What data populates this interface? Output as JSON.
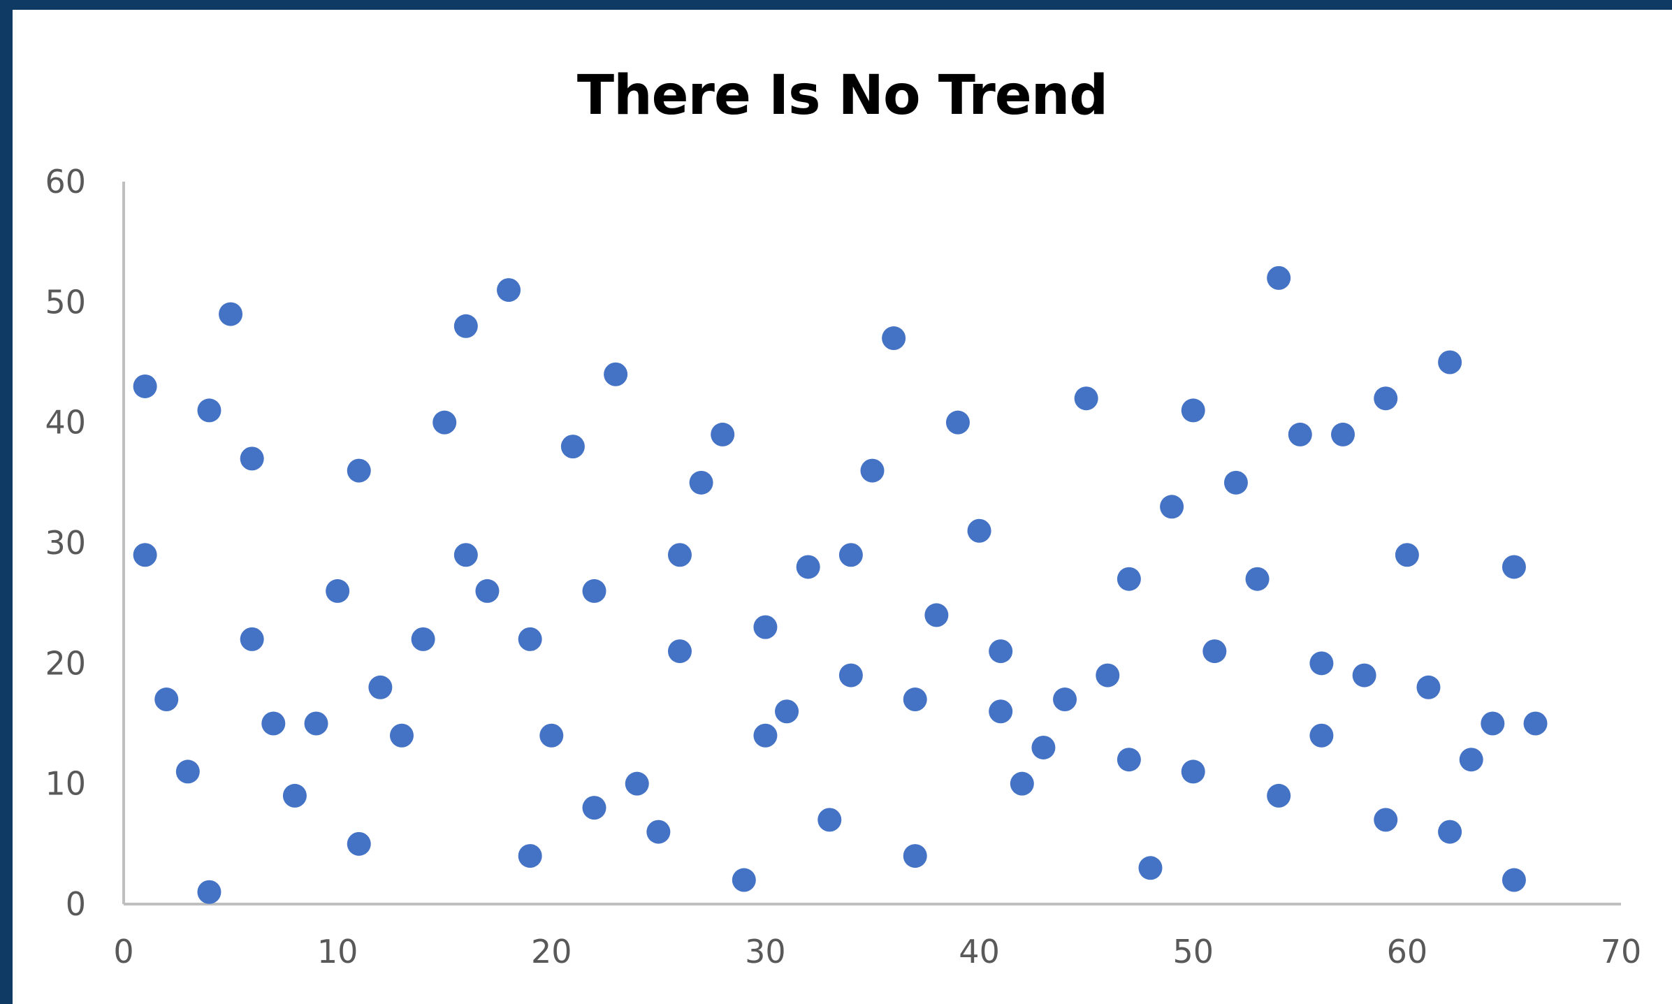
{
  "chart_data": {
    "type": "scatter",
    "title": "There Is No Trend",
    "xlabel": "",
    "ylabel": "",
    "xlim": [
      0,
      70
    ],
    "ylim": [
      0,
      60
    ],
    "x_ticks": [
      0,
      10,
      20,
      30,
      40,
      50,
      60,
      70
    ],
    "y_ticks": [
      0,
      10,
      20,
      30,
      40,
      50,
      60
    ],
    "grid": false,
    "legend": "none",
    "marker_color": "#4472c4",
    "points": [
      [
        1,
        43
      ],
      [
        1,
        29
      ],
      [
        2,
        17
      ],
      [
        3,
        11
      ],
      [
        4,
        41
      ],
      [
        4,
        1
      ],
      [
        5,
        49
      ],
      [
        6,
        37
      ],
      [
        6,
        22
      ],
      [
        7,
        15
      ],
      [
        8,
        9
      ],
      [
        9,
        15
      ],
      [
        10,
        26
      ],
      [
        11,
        36
      ],
      [
        11,
        5
      ],
      [
        12,
        18
      ],
      [
        13,
        14
      ],
      [
        14,
        22
      ],
      [
        15,
        40
      ],
      [
        16,
        48
      ],
      [
        16,
        29
      ],
      [
        17,
        26
      ],
      [
        18,
        51
      ],
      [
        19,
        22
      ],
      [
        19,
        4
      ],
      [
        20,
        14
      ],
      [
        21,
        38
      ],
      [
        22,
        26
      ],
      [
        22,
        8
      ],
      [
        23,
        44
      ],
      [
        24,
        10
      ],
      [
        25,
        6
      ],
      [
        26,
        29
      ],
      [
        26,
        21
      ],
      [
        27,
        35
      ],
      [
        28,
        39
      ],
      [
        29,
        2
      ],
      [
        30,
        23
      ],
      [
        30,
        14
      ],
      [
        31,
        16
      ],
      [
        32,
        28
      ],
      [
        33,
        7
      ],
      [
        34,
        29
      ],
      [
        34,
        19
      ],
      [
        35,
        36
      ],
      [
        36,
        47
      ],
      [
        37,
        17
      ],
      [
        37,
        4
      ],
      [
        38,
        24
      ],
      [
        39,
        40
      ],
      [
        40,
        31
      ],
      [
        41,
        21
      ],
      [
        41,
        16
      ],
      [
        42,
        10
      ],
      [
        43,
        13
      ],
      [
        44,
        17
      ],
      [
        45,
        42
      ],
      [
        46,
        19
      ],
      [
        47,
        27
      ],
      [
        47,
        12
      ],
      [
        48,
        3
      ],
      [
        49,
        33
      ],
      [
        50,
        41
      ],
      [
        50,
        11
      ],
      [
        51,
        21
      ],
      [
        52,
        35
      ],
      [
        53,
        27
      ],
      [
        54,
        52
      ],
      [
        54,
        9
      ],
      [
        55,
        39
      ],
      [
        56,
        20
      ],
      [
        56,
        14
      ],
      [
        57,
        39
      ],
      [
        58,
        19
      ],
      [
        59,
        42
      ],
      [
        59,
        7
      ],
      [
        60,
        29
      ],
      [
        61,
        18
      ],
      [
        62,
        45
      ],
      [
        62,
        6
      ],
      [
        63,
        12
      ],
      [
        64,
        15
      ],
      [
        65,
        28
      ],
      [
        65,
        2
      ],
      [
        66,
        15
      ]
    ]
  }
}
